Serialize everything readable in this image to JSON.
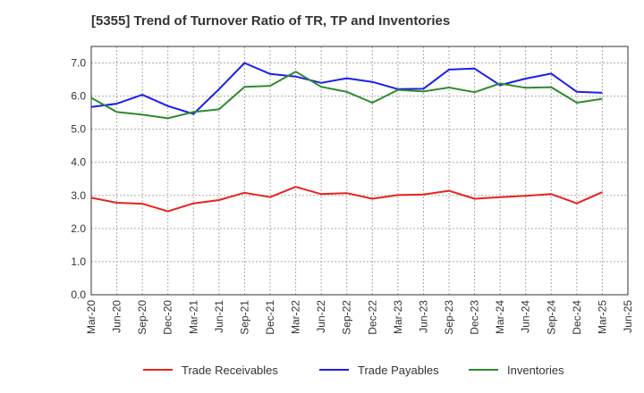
{
  "chart_data": {
    "type": "line",
    "title": "[5355]  Trend of Turnover Ratio of TR, TP and Inventories",
    "xlabel": "",
    "ylabel": "",
    "ylim": [
      0,
      7.5
    ],
    "yticks": [
      "0.0",
      "1.0",
      "2.0",
      "3.0",
      "4.0",
      "5.0",
      "6.0",
      "7.0"
    ],
    "categories": [
      "Mar-20",
      "Jun-20",
      "Sep-20",
      "Dec-20",
      "Mar-21",
      "Jun-21",
      "Sep-21",
      "Dec-21",
      "Mar-22",
      "Jun-22",
      "Sep-22",
      "Dec-22",
      "Mar-23",
      "Jun-23",
      "Sep-23",
      "Dec-23",
      "Mar-24",
      "Jun-24",
      "Sep-24",
      "Dec-24",
      "Mar-25",
      "Jun-25"
    ],
    "grid": true,
    "legend_position": "bottom",
    "series": [
      {
        "name": "Trade Receivables",
        "color": "#e8231c",
        "values": [
          2.93,
          2.78,
          2.75,
          2.52,
          2.76,
          2.86,
          3.08,
          2.95,
          3.26,
          3.04,
          3.07,
          2.9,
          3.01,
          3.03,
          3.14,
          2.9,
          2.95,
          2.99,
          3.04,
          2.76,
          3.1,
          null
        ]
      },
      {
        "name": "Trade Payables",
        "color": "#1c1ee8",
        "values": [
          5.67,
          5.77,
          6.04,
          5.7,
          5.46,
          6.21,
          7.0,
          6.67,
          6.59,
          6.4,
          6.54,
          6.43,
          6.21,
          6.22,
          6.8,
          6.83,
          6.33,
          6.53,
          6.68,
          6.13,
          6.1,
          null
        ]
      },
      {
        "name": "Inventories",
        "color": "#2e8b2e",
        "values": [
          5.95,
          5.52,
          5.44,
          5.33,
          5.52,
          5.6,
          6.28,
          6.31,
          6.74,
          6.28,
          6.13,
          5.8,
          6.19,
          6.14,
          6.26,
          6.12,
          6.38,
          6.25,
          6.27,
          5.8,
          5.92,
          null
        ]
      }
    ]
  }
}
